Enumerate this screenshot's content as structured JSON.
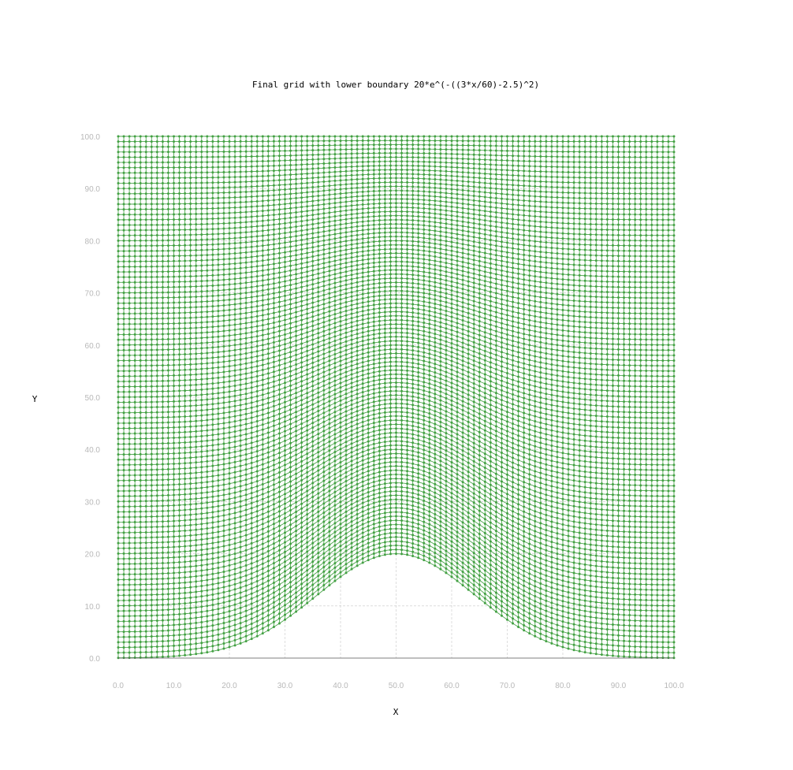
{
  "chart_data": {
    "type": "line",
    "title": "Final grid with lower boundary 20*e^(-((3*x/60)-2.5)^2)",
    "xlabel": "X",
    "ylabel": "Y",
    "xlim": [
      0,
      100
    ],
    "ylim": [
      0,
      100
    ],
    "x_ticks": [
      0,
      10,
      20,
      30,
      40,
      50,
      60,
      70,
      80,
      90,
      100
    ],
    "y_ticks": [
      0,
      10,
      20,
      30,
      40,
      50,
      60,
      70,
      80,
      90,
      100
    ],
    "x_tick_labels": [
      "0.0",
      "10.0",
      "20.0",
      "30.0",
      "40.0",
      "50.0",
      "60.0",
      "70.0",
      "80.0",
      "90.0",
      "100.0"
    ],
    "y_tick_labels": [
      "0.0",
      "10.0",
      "20.0",
      "30.0",
      "40.0",
      "50.0",
      "60.0",
      "70.0",
      "80.0",
      "90.0",
      "100.0"
    ],
    "grid": true,
    "lower_boundary": "20*e^(-((3*x/60)-2.5)^2)",
    "upper_boundary": 100,
    "grid_points_x": 101,
    "grid_points_y": 101,
    "series_color": "#4ca64c",
    "marker_color": "#43a043"
  }
}
